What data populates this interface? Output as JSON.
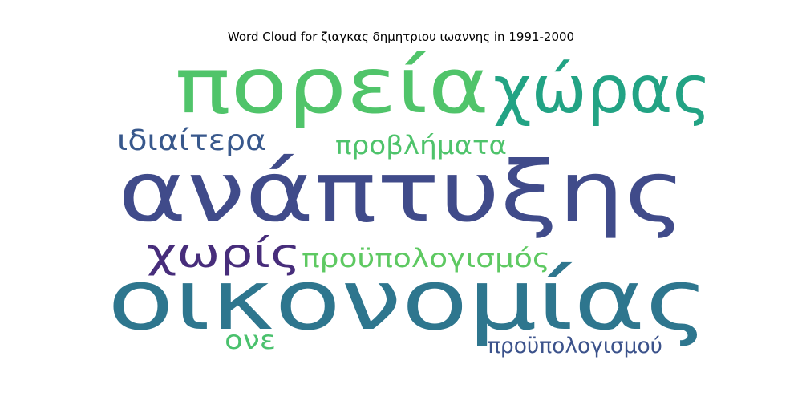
{
  "chart_data": {
    "type": "wordcloud",
    "title": "Word Cloud for ζιαγκας δημητριου ιωαννης in 1991-2000",
    "words": [
      {
        "text": "ανάπτυξης",
        "weight": 1.0,
        "color": "#404b8a"
      },
      {
        "text": "οικονομίας",
        "weight": 0.98,
        "color": "#2e768e"
      },
      {
        "text": "πορεία",
        "weight": 0.86,
        "color": "#50c46a"
      },
      {
        "text": "χώρας",
        "weight": 0.72,
        "color": "#22a384"
      },
      {
        "text": "χωρίς",
        "weight": 0.5,
        "color": "#472d7b"
      },
      {
        "text": "ιδιαίτερα",
        "weight": 0.36,
        "color": "#38588c"
      },
      {
        "text": "προβλήματα",
        "weight": 0.34,
        "color": "#4ec36b"
      },
      {
        "text": "προϋπολογισμός",
        "weight": 0.34,
        "color": "#5ec962"
      },
      {
        "text": "ονε",
        "weight": 0.3,
        "color": "#4ac16d"
      },
      {
        "text": "προϋπολογισμού",
        "weight": 0.28,
        "color": "#3b528b"
      }
    ]
  }
}
